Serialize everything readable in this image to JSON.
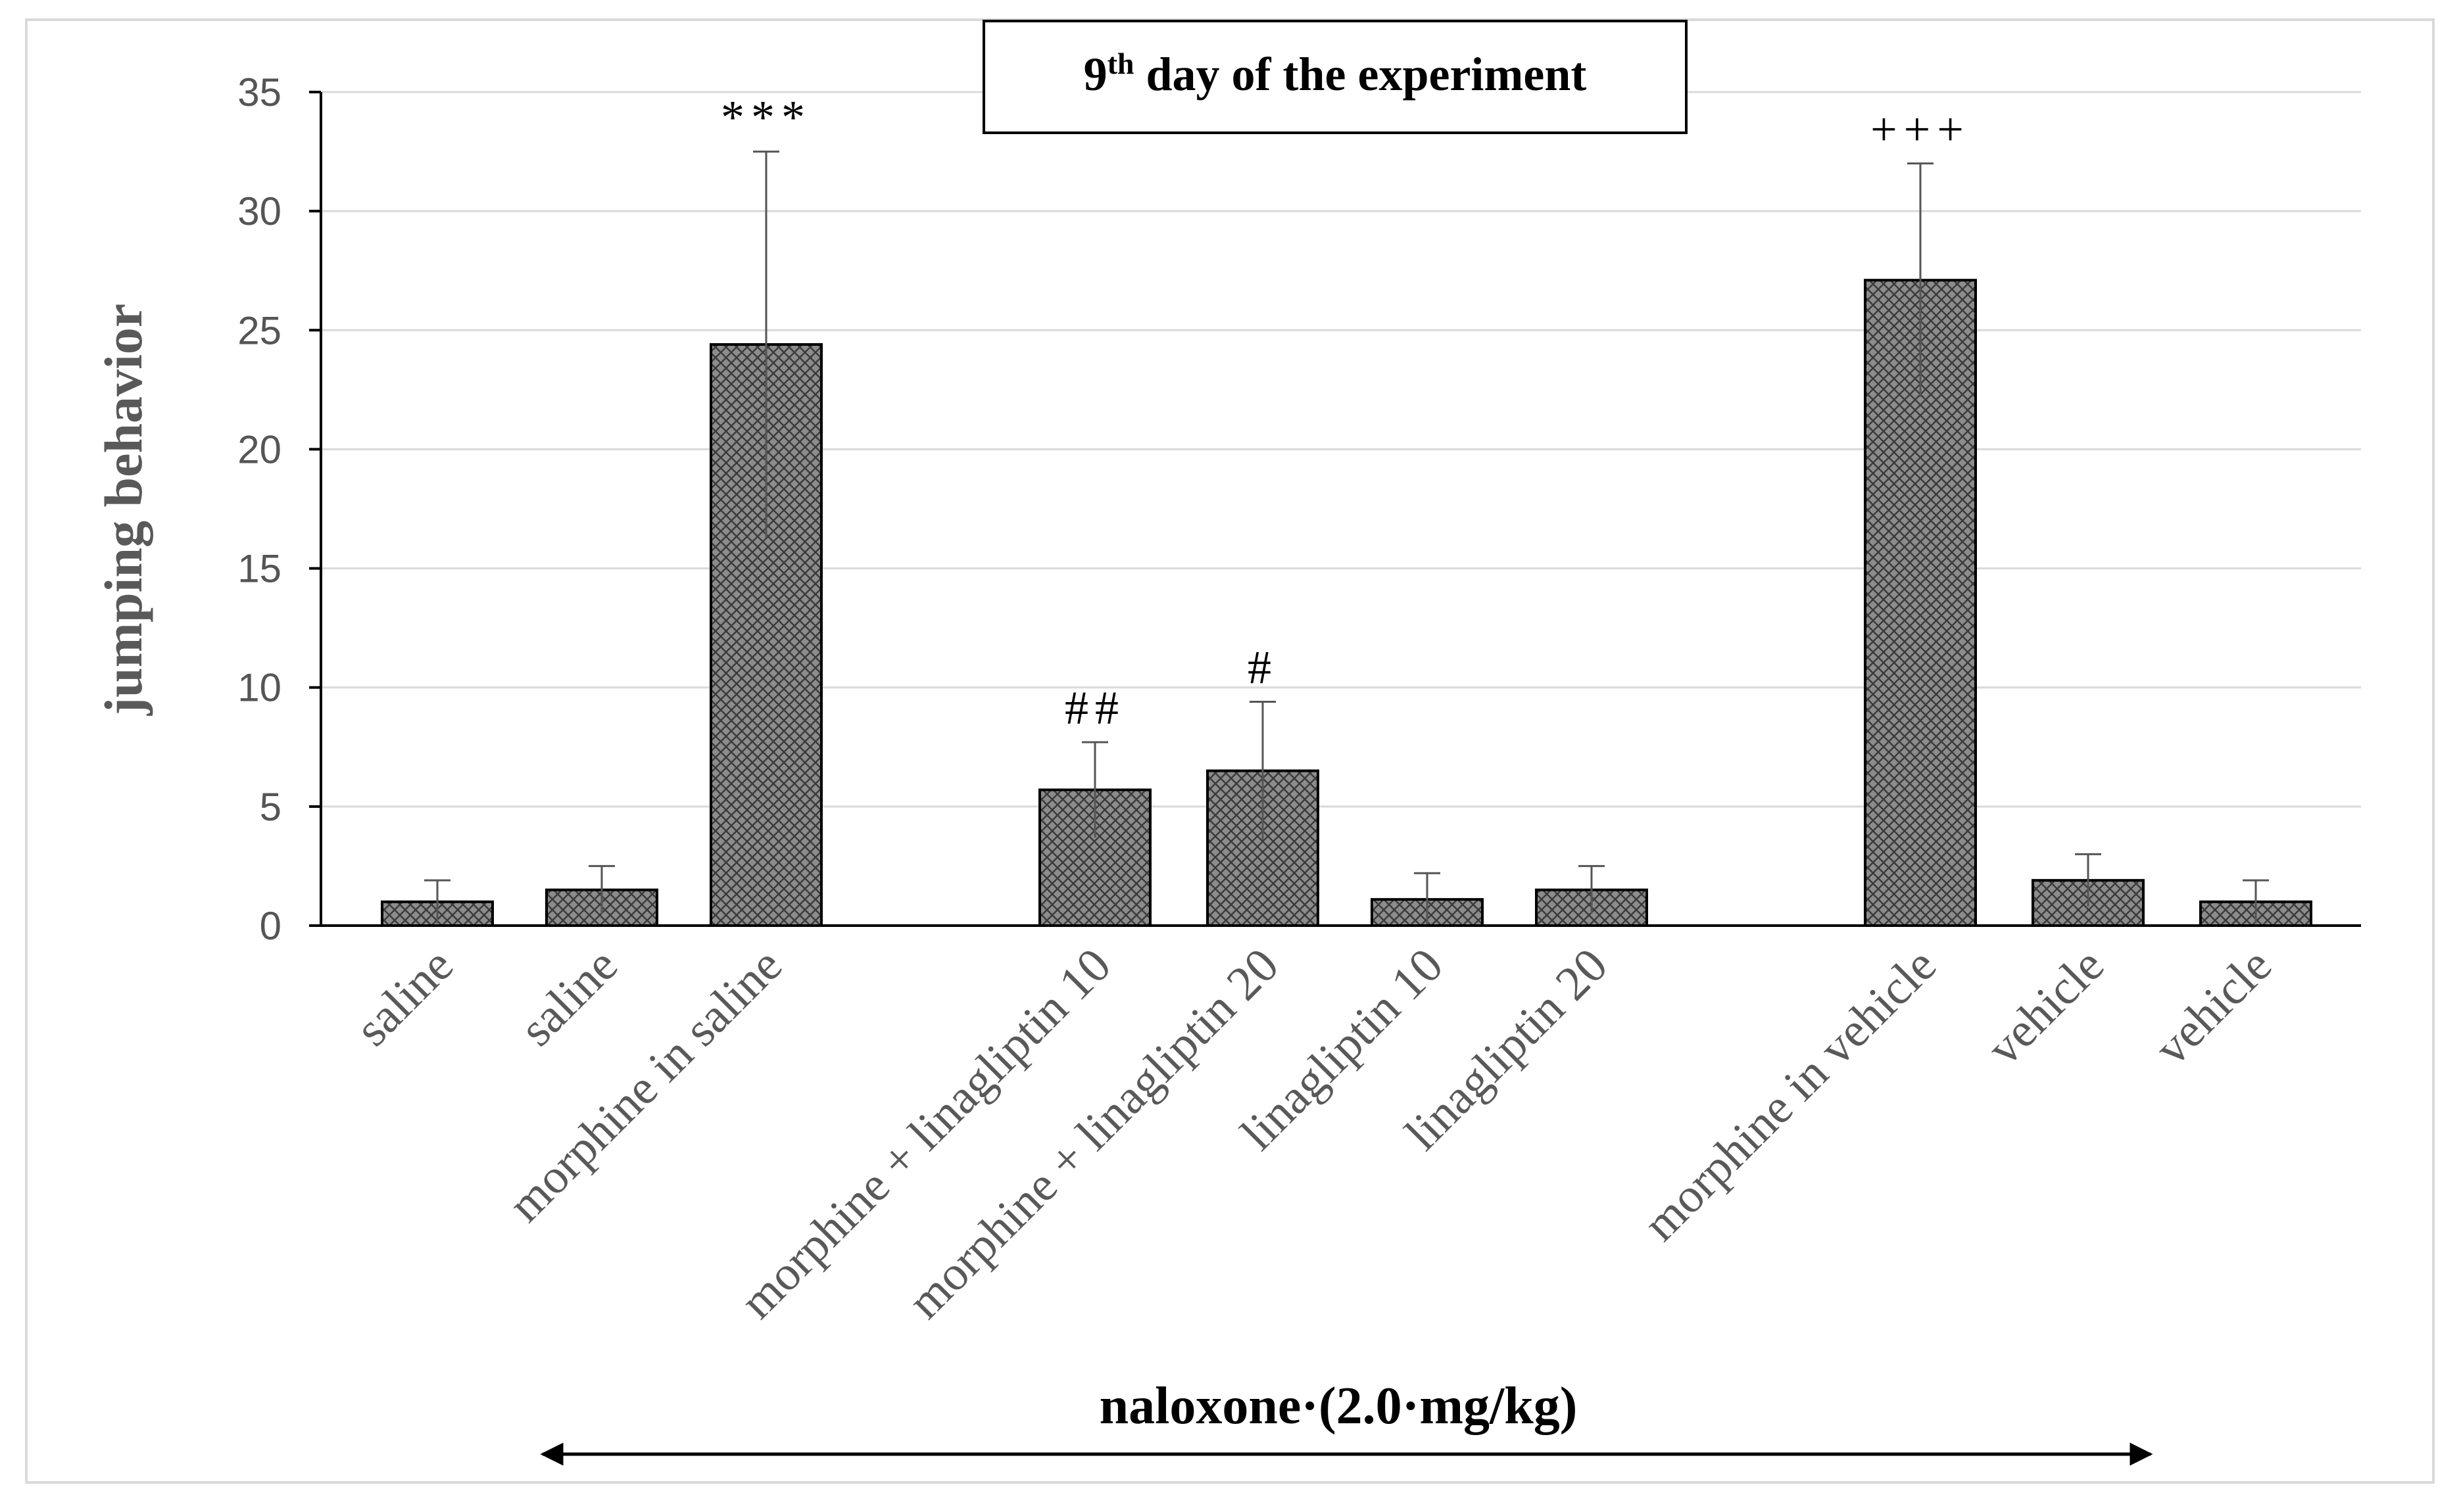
{
  "chart_data": {
    "type": "bar",
    "title": "day of the experiment",
    "title_prefix": "9",
    "title_superscript": "th",
    "ylabel": "jumping behavior",
    "xlabel": "",
    "ylim": [
      0,
      35
    ],
    "yticks": [
      0,
      5,
      10,
      15,
      20,
      25,
      30,
      35
    ],
    "grid": true,
    "categories": [
      "saline",
      "saline",
      "morphine in saline",
      "morphine + linagliptin 10",
      "morphine + linagliptin 20",
      "linagliptin 10",
      "linagliptin 20",
      "morphine in vehicle",
      "vehicle",
      "vehicle"
    ],
    "values": [
      1.0,
      1.5,
      24.4,
      5.7,
      6.5,
      1.1,
      1.5,
      27.1,
      1.9,
      1.0
    ],
    "errors": [
      0.9,
      1.0,
      8.1,
      2.0,
      2.9,
      1.1,
      1.0,
      4.9,
      1.1,
      0.9
    ],
    "significance": [
      "",
      "",
      "***",
      "##",
      "#",
      "",
      "",
      "+++",
      "",
      ""
    ],
    "bar_fill": "#8c8c8c",
    "bar_stroke": "#000000",
    "gridline_color": "#d9d9d9",
    "footer": {
      "label": "naloxone·(2.0·mg/kg)",
      "arrow": "double-headed",
      "from_category": 1,
      "to_category": 9
    }
  }
}
